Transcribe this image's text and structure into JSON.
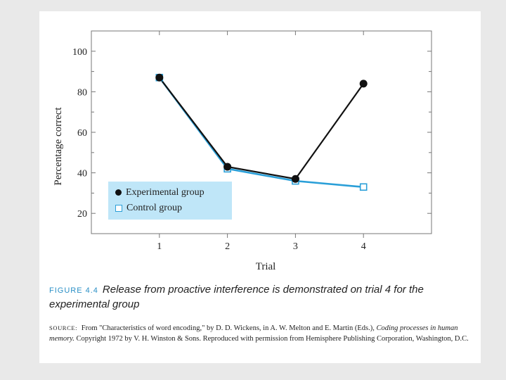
{
  "chart_data": {
    "type": "line",
    "x": [
      1,
      2,
      3,
      4
    ],
    "categories": [
      "1",
      "2",
      "3",
      "4"
    ],
    "series": [
      {
        "name": "Experimental group",
        "values": [
          87,
          43,
          37,
          84
        ],
        "color": "#111111",
        "marker": "filled-circle"
      },
      {
        "name": "Control group",
        "values": [
          87,
          42,
          36,
          33
        ],
        "color": "#2a9fd8",
        "marker": "open-square"
      }
    ],
    "xlabel": "Trial",
    "ylabel": "Percentage correct",
    "ylim": [
      10,
      110
    ],
    "yticks": [
      20,
      40,
      60,
      80,
      100
    ],
    "legend_position": "bottom-left",
    "grid": false
  },
  "caption": {
    "label": "FIGURE 4.4",
    "text": "Release from proactive interference is demonstrated on trial 4 for the experimental group"
  },
  "source": {
    "label": "SOURCE:",
    "text_part1": "From \"Characteristics of word encoding,\" by D. D. Wickens, in A. W. Melton and E. Martin (Eds.),",
    "italic_title": "Coding processes in human memory.",
    "text_part2": "Copyright 1972 by V. H. Winston & Sons. Reproduced with permission from Hemisphere Publishing Corporation, Washington, D.C."
  }
}
